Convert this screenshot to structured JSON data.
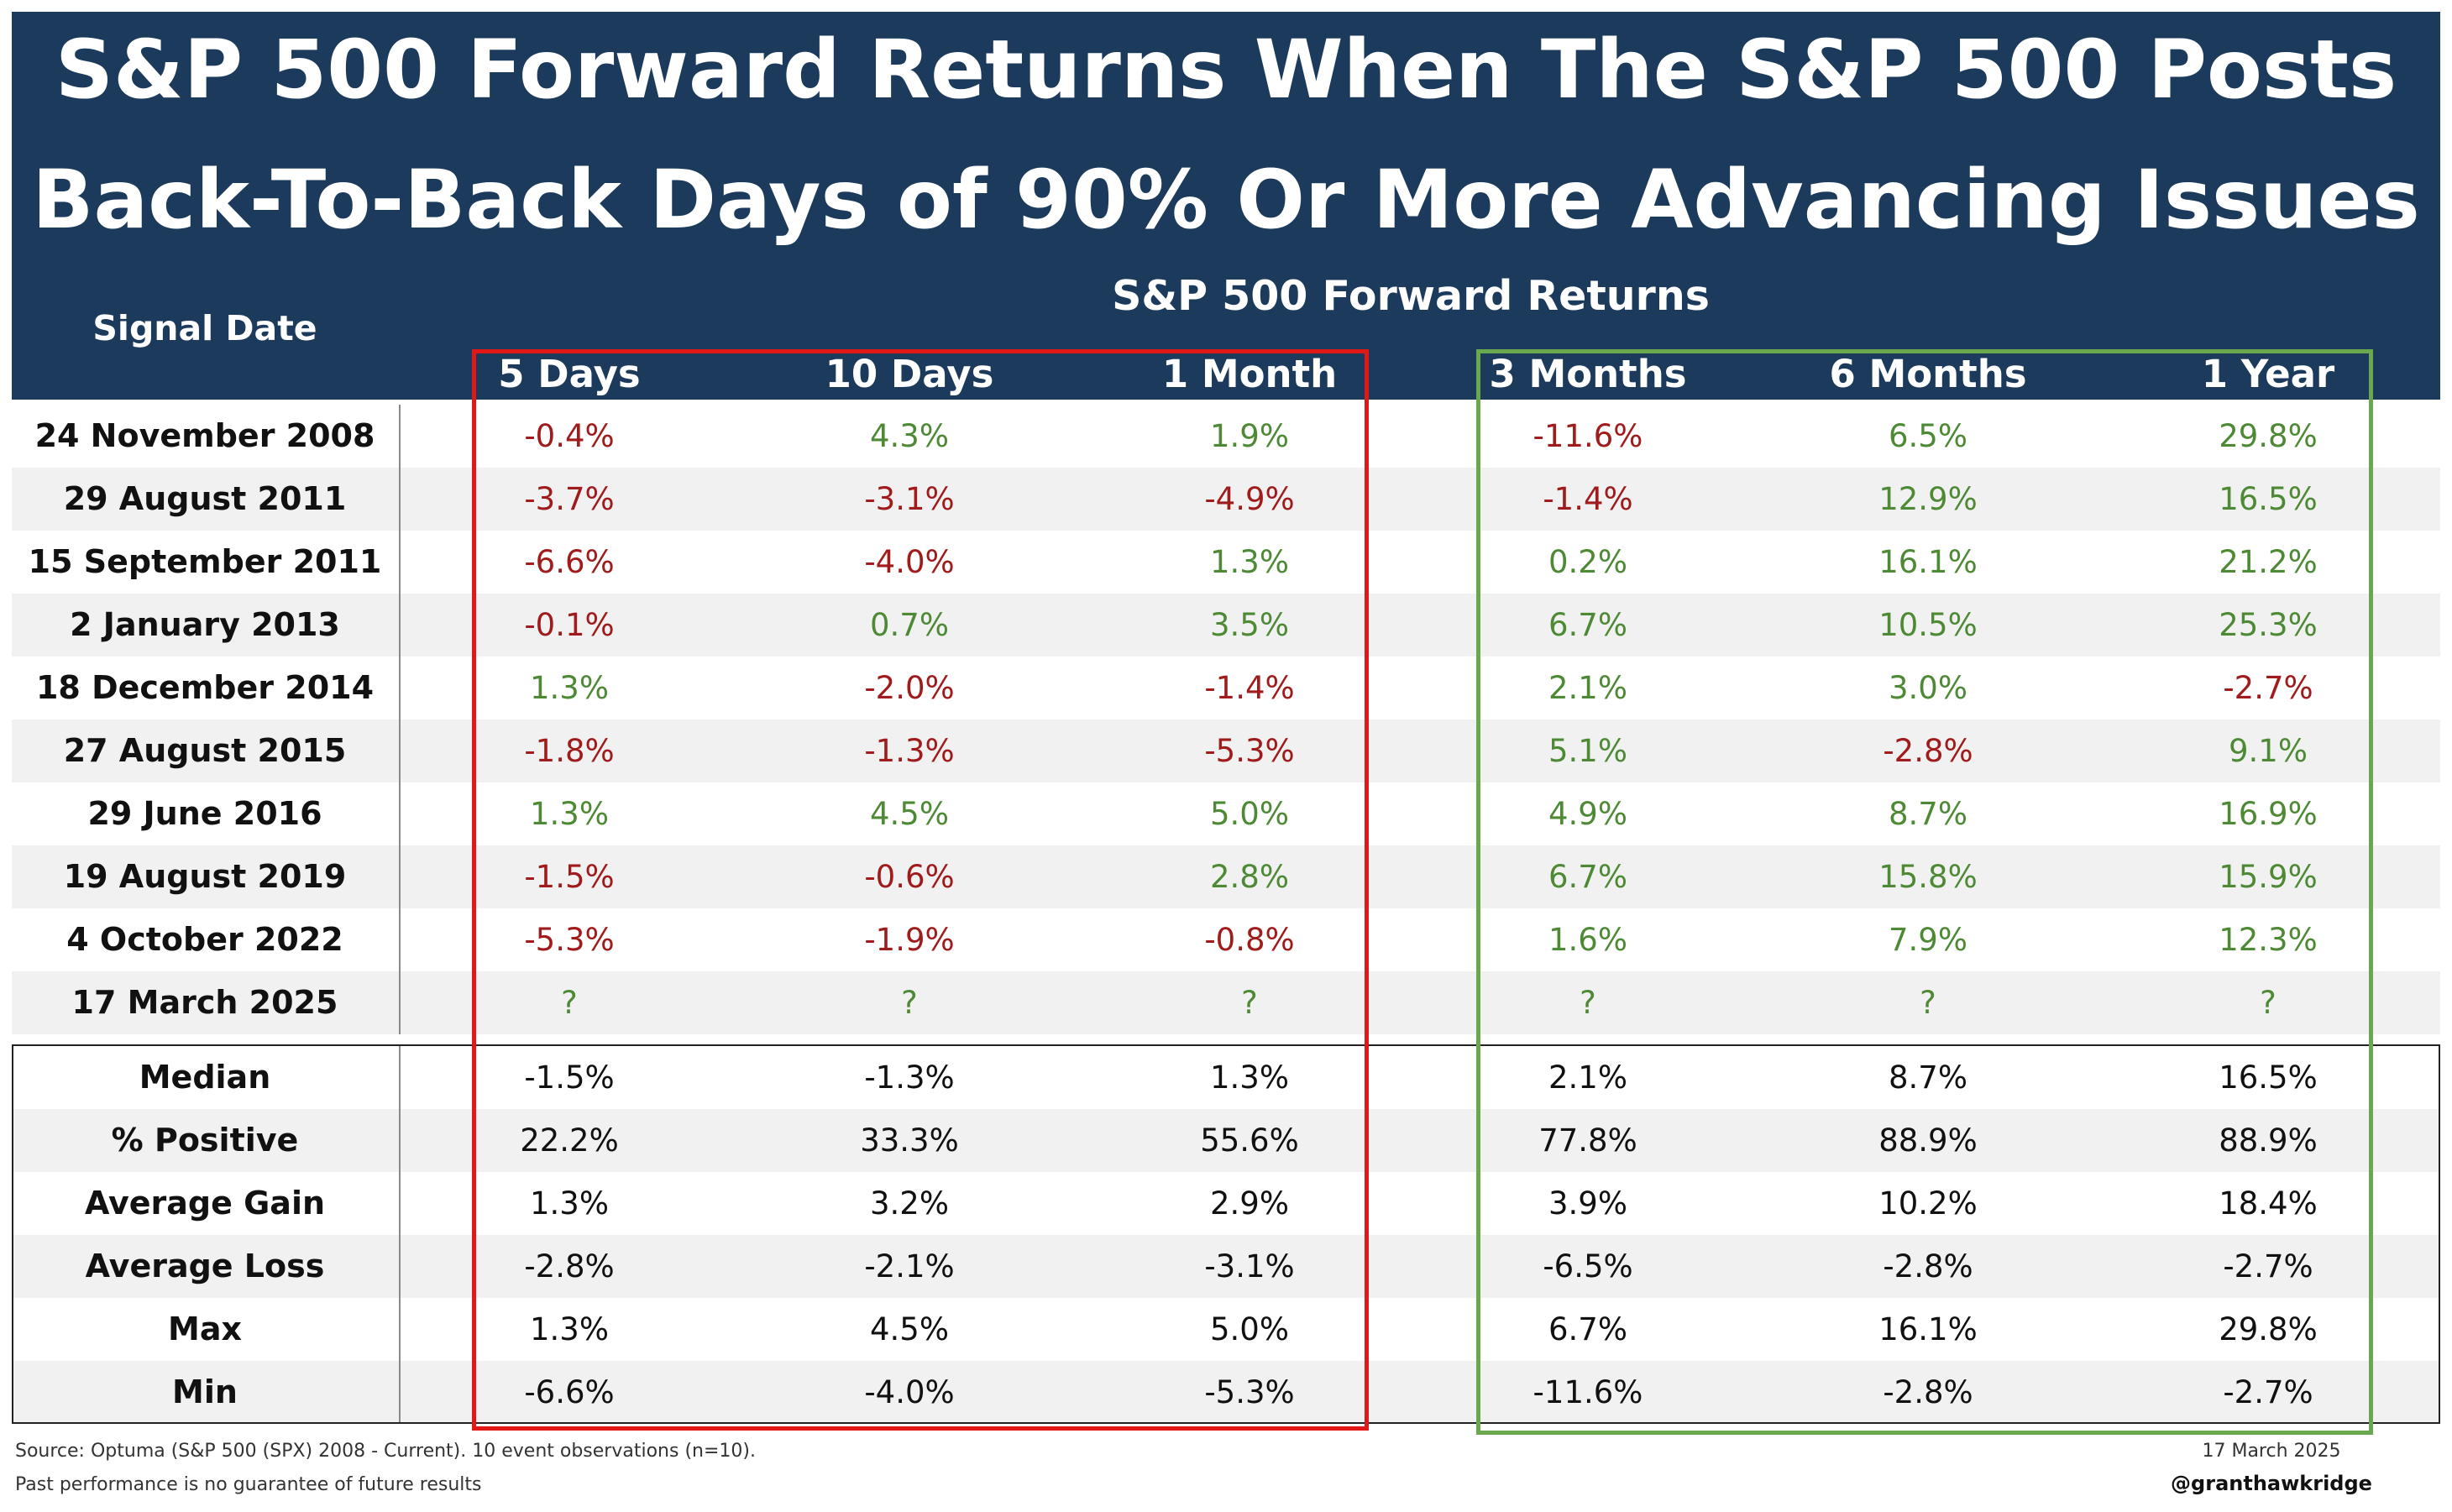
{
  "title_line1": "S&P 500 Forward Returns When The S&P 500 Posts",
  "title_line2": "Back-To-Back Days of 90% Or More Advancing Issues",
  "subheader": "S&P 500 Forward Returns",
  "signal_date_header": "Signal Date",
  "columns": [
    "5 Days",
    "10 Days",
    "1 Month",
    "3 Months",
    "6 Months",
    "1 Year"
  ],
  "rows": [
    {
      "date": "24 November 2008",
      "values": [
        "-0.4%",
        "4.3%",
        "1.9%",
        "-11.6%",
        "6.5%",
        "29.8%"
      ]
    },
    {
      "date": "29 August 2011",
      "values": [
        "-3.7%",
        "-3.1%",
        "-4.9%",
        "-1.4%",
        "12.9%",
        "16.5%"
      ]
    },
    {
      "date": "15 September 2011",
      "values": [
        "-6.6%",
        "-4.0%",
        "1.3%",
        "0.2%",
        "16.1%",
        "21.2%"
      ]
    },
    {
      "date": "2 January 2013",
      "values": [
        "-0.1%",
        "0.7%",
        "3.5%",
        "6.7%",
        "10.5%",
        "25.3%"
      ]
    },
    {
      "date": "18 December 2014",
      "values": [
        "1.3%",
        "-2.0%",
        "-1.4%",
        "2.1%",
        "3.0%",
        "-2.7%"
      ]
    },
    {
      "date": "27 August 2015",
      "values": [
        "-1.8%",
        "-1.3%",
        "-5.3%",
        "5.1%",
        "-2.8%",
        "9.1%"
      ]
    },
    {
      "date": "29 June 2016",
      "values": [
        "1.3%",
        "4.5%",
        "5.0%",
        "4.9%",
        "8.7%",
        "16.9%"
      ]
    },
    {
      "date": "19 August 2019",
      "values": [
        "-1.5%",
        "-0.6%",
        "2.8%",
        "6.7%",
        "15.8%",
        "15.9%"
      ]
    },
    {
      "date": "4 October 2022",
      "values": [
        "-5.3%",
        "-1.9%",
        "-0.8%",
        "1.6%",
        "7.9%",
        "12.3%"
      ]
    },
    {
      "date": "17 March 2025",
      "values": [
        "?",
        "?",
        "?",
        "?",
        "?",
        "?"
      ]
    }
  ],
  "stats": [
    {
      "label": "Median",
      "values": [
        "-1.5%",
        "-1.3%",
        "1.3%",
        "2.1%",
        "8.7%",
        "16.5%"
      ]
    },
    {
      "label": "% Positive",
      "values": [
        "22.2%",
        "33.3%",
        "55.6%",
        "77.8%",
        "88.9%",
        "88.9%"
      ]
    },
    {
      "label": "Average Gain",
      "values": [
        "1.3%",
        "3.2%",
        "2.9%",
        "3.9%",
        "10.2%",
        "18.4%"
      ]
    },
    {
      "label": "Average Loss",
      "values": [
        "-2.8%",
        "-2.1%",
        "-3.1%",
        "-6.5%",
        "-2.8%",
        "-2.7%"
      ]
    },
    {
      "label": "Max",
      "values": [
        "1.3%",
        "4.5%",
        "5.0%",
        "6.7%",
        "16.1%",
        "29.8%"
      ]
    },
    {
      "label": "Min",
      "values": [
        "-6.6%",
        "-4.0%",
        "-5.3%",
        "-11.6%",
        "-2.8%",
        "-2.7%"
      ]
    }
  ],
  "footer": {
    "source": "Source: Optuma (S&P 500 (SPX) 2008 - Current). 10 event observations (n=10).",
    "disclaimer": "Past performance is no guarantee of future results",
    "date": "17 March 2025",
    "handle": "@granthawkridge"
  },
  "colors": {
    "header_bg": "#1b3a5c",
    "positive": "#4e8a35",
    "negative": "#a01b1b",
    "highlight_short": "#e01818",
    "highlight_long": "#6aa84f"
  }
}
